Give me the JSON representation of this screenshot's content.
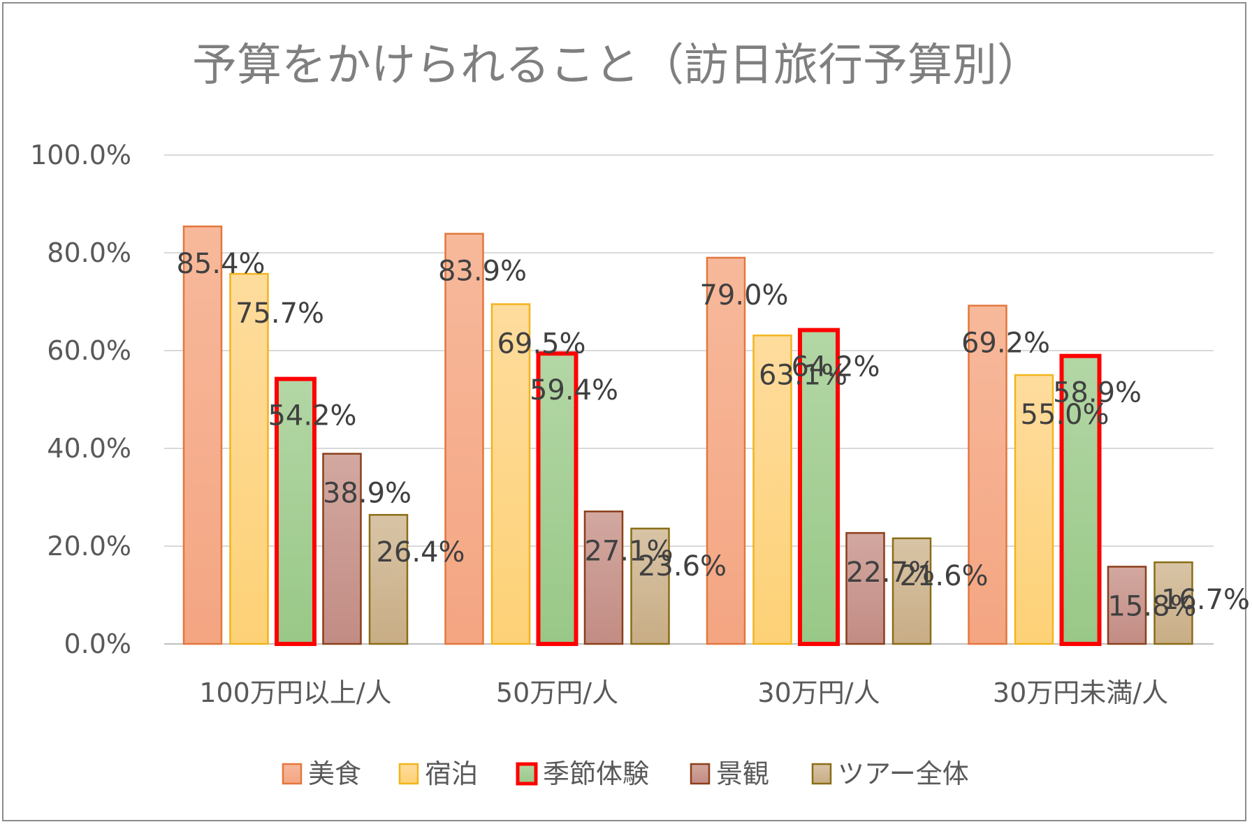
{
  "chart_data": {
    "type": "bar",
    "title": "予算をかけられること（訪日旅行予算別）",
    "categories": [
      "100万円以上/人",
      "50万円/人",
      "30万円/人",
      "30万円未満/人"
    ],
    "series": [
      {
        "name": "美食",
        "values": [
          85.4,
          83.9,
          79.0,
          69.2
        ],
        "labels": [
          "85.4%",
          "83.9%",
          "79.0%",
          "69.2%"
        ],
        "fill_top": "#f7b99b",
        "fill_bottom": "#f4a582",
        "stroke": "#e2773d"
      },
      {
        "name": "宿泊",
        "values": [
          75.7,
          69.5,
          63.1,
          55.0
        ],
        "labels": [
          "75.7%",
          "69.5%",
          "63.1%",
          "55.0%"
        ],
        "fill_top": "#fedc9d",
        "fill_bottom": "#fdd176",
        "stroke": "#f2b41d"
      },
      {
        "name": "季節体験",
        "values": [
          54.2,
          59.4,
          64.2,
          58.9
        ],
        "labels": [
          "54.2%",
          "59.4%",
          "64.2%",
          "58.9%"
        ],
        "fill_top": "#b3d6a5",
        "fill_bottom": "#98c887",
        "stroke": "#ff0000"
      },
      {
        "name": "景観",
        "values": [
          38.9,
          27.1,
          22.7,
          15.8
        ],
        "labels": [
          "38.9%",
          "27.1%",
          "22.7%",
          "15.8%"
        ],
        "fill_top": "#d2a8a0",
        "fill_bottom": "#c28c84",
        "stroke": "#8b3f1a"
      },
      {
        "name": "ツアー全体",
        "values": [
          26.4,
          23.6,
          21.6,
          16.7
        ],
        "labels": [
          "26.4%",
          "23.6%",
          "21.6%",
          "16.7%"
        ],
        "fill_top": "#d8c4a6",
        "fill_bottom": "#c8ad85",
        "stroke": "#8a6d16"
      }
    ],
    "ylim": [
      0,
      100
    ],
    "yticks": [
      "0.0%",
      "20.0%",
      "40.0%",
      "60.0%",
      "80.0%",
      "100.0%"
    ],
    "ytick_values": [
      0,
      20,
      40,
      60,
      80,
      100
    ],
    "xlabel": "",
    "ylabel": "",
    "grid": true,
    "legend_position": "bottom",
    "colors": {
      "grid": "#d9d9d9",
      "axis": "#bfbfbf"
    }
  }
}
